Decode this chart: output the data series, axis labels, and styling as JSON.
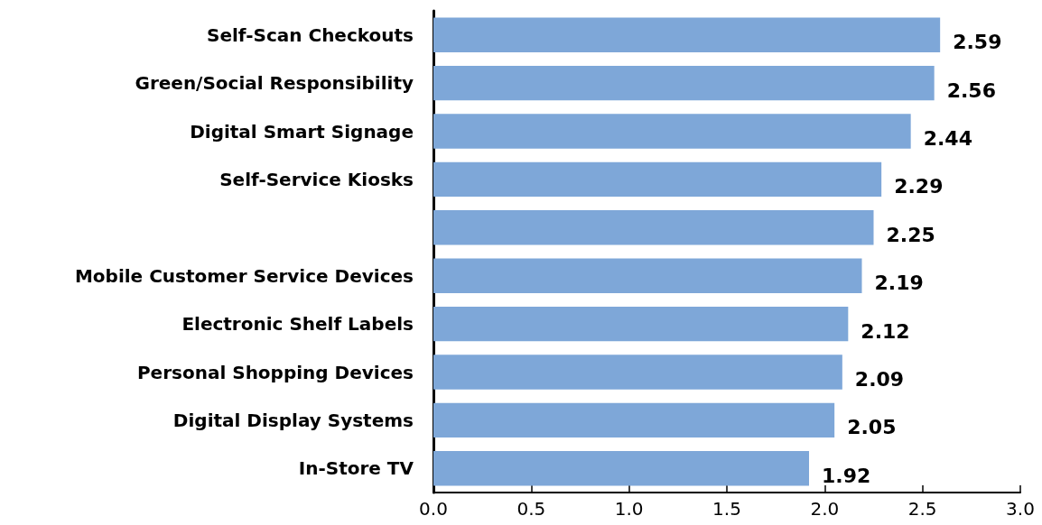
{
  "chart_data": {
    "type": "bar",
    "orientation": "horizontal",
    "categories": [
      "Self-Scan Checkouts",
      "Green/Social Responsibility",
      "Digital Smart Signage",
      "Self-Service Kiosks",
      null,
      "Mobile Customer Service Devices",
      "Electronic Shelf Labels",
      "Personal Shopping Devices",
      "Digital Display Systems",
      "In-Store TV"
    ],
    "values": [
      2.59,
      2.56,
      2.44,
      2.29,
      2.25,
      2.19,
      2.12,
      2.09,
      2.05,
      1.92
    ],
    "color": "#7ea7d8",
    "xlim": [
      0,
      3
    ],
    "xticks": [
      {
        "value": 0,
        "label": "0.0"
      },
      0.5,
      {
        "value": 1,
        "label": "1.0"
      },
      1.5,
      {
        "value": 2,
        "label": "2.0"
      },
      2.5,
      {
        "value": 3,
        "label": "3.0"
      }
    ],
    "data_labels": true
  }
}
